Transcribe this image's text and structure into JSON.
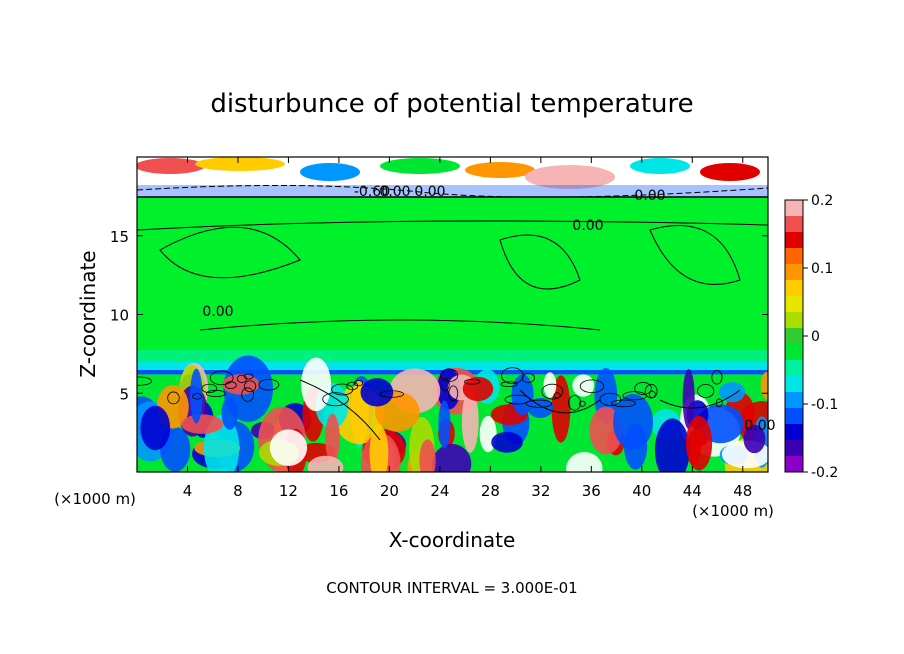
{
  "chart_data": {
    "type": "heatmap",
    "title": "disturbunce of potential temperature",
    "xlabel": "X-coordinate",
    "ylabel": "Z-coordinate",
    "x_unit": "(×1000 m)",
    "y_unit": "(×1000 m)",
    "xlim": [
      0,
      50
    ],
    "ylim": [
      0,
      20
    ],
    "xticks": [
      4,
      8,
      12,
      16,
      20,
      24,
      28,
      32,
      36,
      40,
      44,
      48
    ],
    "yticks": [
      5,
      10,
      15
    ],
    "colorbar": {
      "range": [
        -0.2,
        0.2
      ],
      "ticks": [
        "0.2",
        "0.1",
        "0",
        "-0.1",
        "-0.2"
      ],
      "colors": [
        "#f7b4b4",
        "#f05050",
        "#e00000",
        "#ff6400",
        "#ff9600",
        "#ffcc00",
        "#e6e600",
        "#aadc00",
        "#32cd32",
        "#00e632",
        "#00f0a0",
        "#00e6e6",
        "#0096ff",
        "#0050ff",
        "#0000d2",
        "#3c00b4",
        "#8c00c8"
      ]
    },
    "contour_labels": [
      "0.00",
      "-0.60",
      "0.00",
      "0.00",
      "0.00",
      "0.00",
      "0.00"
    ],
    "footer": "CONTOUR INTERVAL = 3.000E-01",
    "regions": {
      "upper_band_z": [
        17.5,
        20
      ],
      "upper_fill_value": 0.0,
      "lower_band_z": [
        0,
        6.2
      ],
      "dominant_value": 0.0
    }
  }
}
